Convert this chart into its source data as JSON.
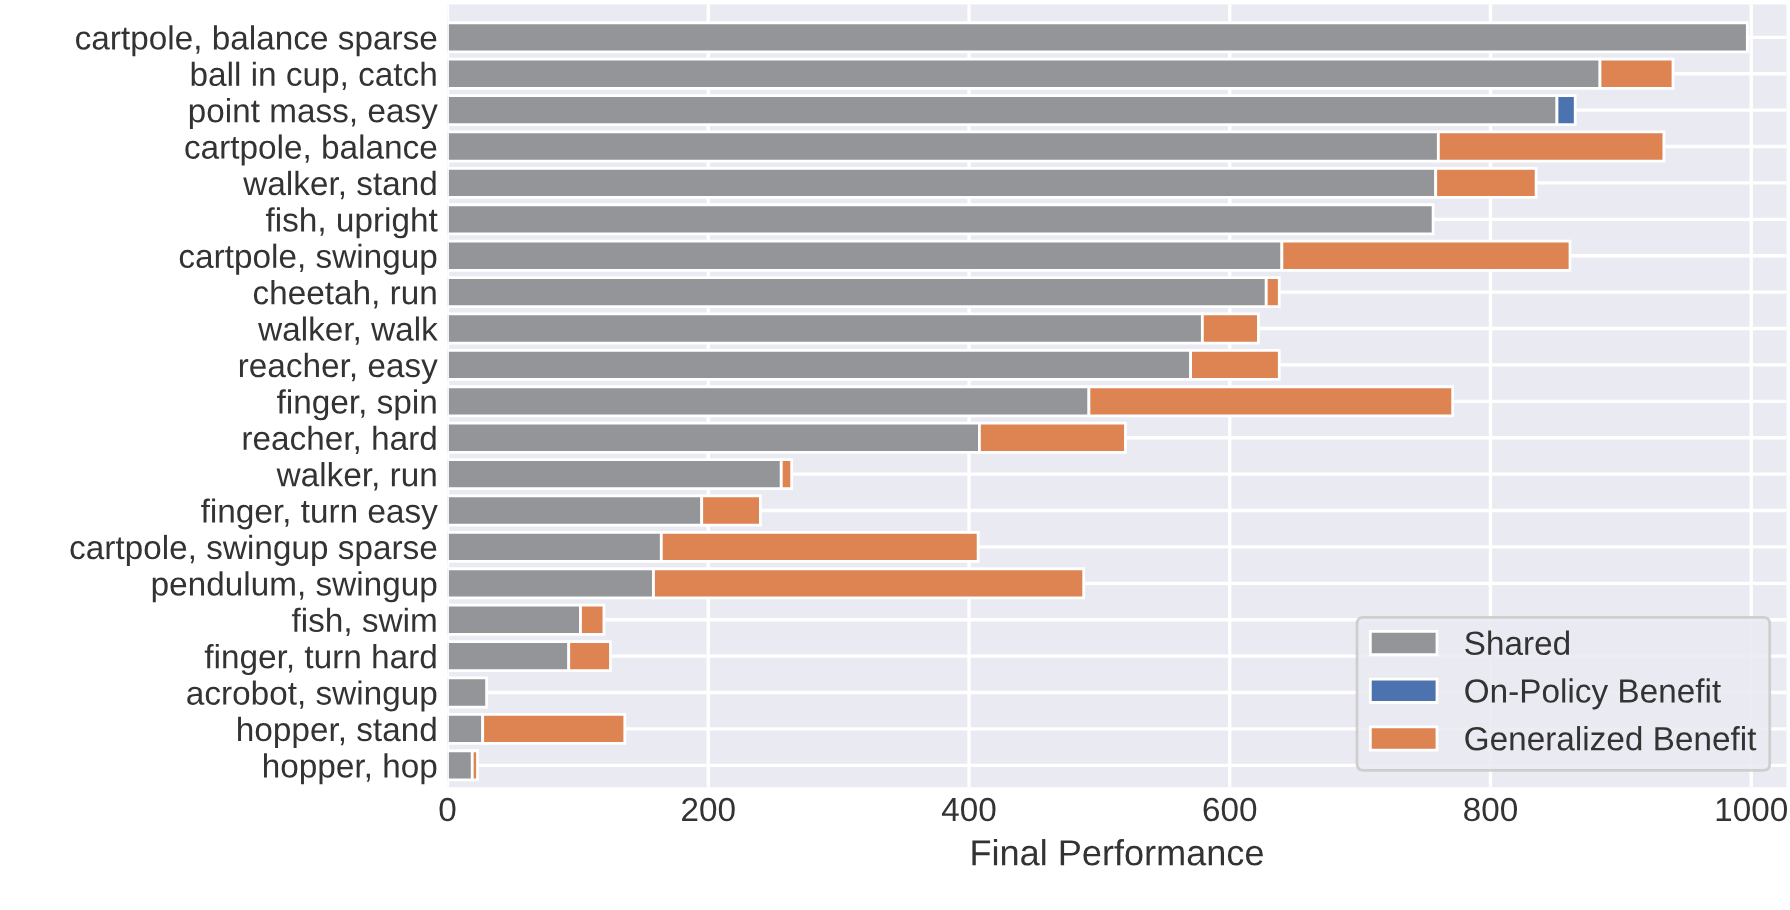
{
  "chart_data": {
    "type": "bar",
    "orientation": "horizontal",
    "stacked": true,
    "xlabel": "Final Performance",
    "categories": [
      "cartpole, balance sparse",
      "ball in cup, catch",
      "point mass, easy",
      "cartpole, balance",
      "walker, stand",
      "fish, upright",
      "cartpole, swingup",
      "cheetah, run",
      "walker, walk",
      "reacher, easy",
      "finger, spin",
      "reacher, hard",
      "walker, run",
      "finger, turn easy",
      "cartpole, swingup sparse",
      "pendulum, swingup",
      "fish, swim",
      "finger, turn hard",
      "acrobot, swingup",
      "hopper, stand",
      "hopper, hop"
    ],
    "series": [
      {
        "name": "Shared",
        "color": "#939598",
        "values": [
          997,
          884,
          851,
          760,
          758,
          756,
          640,
          628,
          579,
          570,
          492,
          408,
          256,
          195,
          164,
          158,
          102,
          93,
          30,
          27,
          19
        ]
      },
      {
        "name": "On-Policy Benefit",
        "color": "#4c72b0",
        "values": [
          null,
          null,
          14,
          null,
          null,
          null,
          null,
          null,
          null,
          null,
          null,
          null,
          null,
          null,
          null,
          null,
          null,
          null,
          null,
          null,
          null
        ]
      },
      {
        "name": "Generalized Benefit",
        "color": "#dd8452",
        "values": [
          null,
          56,
          null,
          173,
          77,
          null,
          221,
          10,
          43,
          68,
          279,
          112,
          8,
          45,
          243,
          330,
          18,
          32,
          null,
          109,
          4
        ]
      }
    ],
    "xlim": [
      0,
      1027
    ],
    "xticks": [
      0,
      200,
      400,
      600,
      800,
      1000
    ],
    "grid": true,
    "legend": "bottom right"
  }
}
